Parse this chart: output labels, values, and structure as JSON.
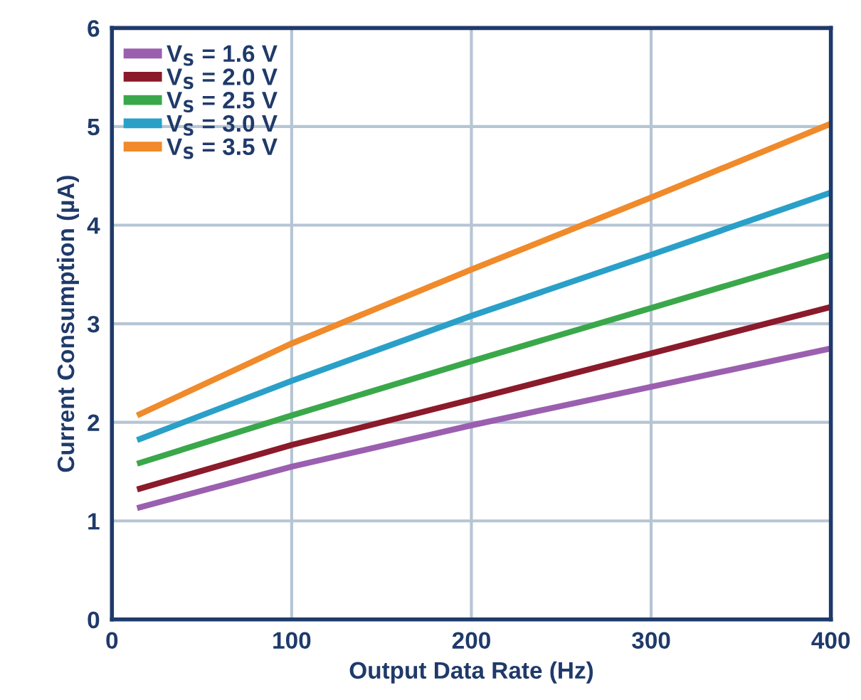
{
  "chart_data": {
    "type": "line",
    "xlabel": "Output Data Rate (Hz)",
    "ylabel": "Current Consumption (µA)",
    "xlim": [
      0,
      400
    ],
    "xticks": [
      0,
      100,
      200,
      300,
      400
    ],
    "ylim": [
      0,
      6
    ],
    "yticks": [
      0,
      1,
      2,
      3,
      4,
      5,
      6
    ],
    "grid": true,
    "legend": "top left",
    "line_style": "solid",
    "x": [
      14,
      100,
      200,
      300,
      400
    ],
    "series": [
      {
        "name": "V$_{S}$ = 1.6 V",
        "color": "#9b5fb0",
        "values": [
          1.13,
          1.55,
          1.97,
          2.36,
          2.75
        ]
      },
      {
        "name": "V$_{S}$ = 2.0 V",
        "color": "#8b1a2a",
        "values": [
          1.32,
          1.77,
          2.23,
          2.7,
          3.17
        ]
      },
      {
        "name": "V$_{S}$ = 2.5 V",
        "color": "#3aa84a",
        "values": [
          1.58,
          2.07,
          2.62,
          3.16,
          3.7
        ]
      },
      {
        "name": "V$_{S}$ = 3.0 V",
        "color": "#2aa0c8",
        "values": [
          1.82,
          2.42,
          3.08,
          3.7,
          4.33
        ]
      },
      {
        "name": "V$_{S}$ = 3.5 V",
        "color": "#f08a2a",
        "values": [
          2.07,
          2.8,
          3.55,
          4.28,
          5.03
        ]
      }
    ]
  }
}
